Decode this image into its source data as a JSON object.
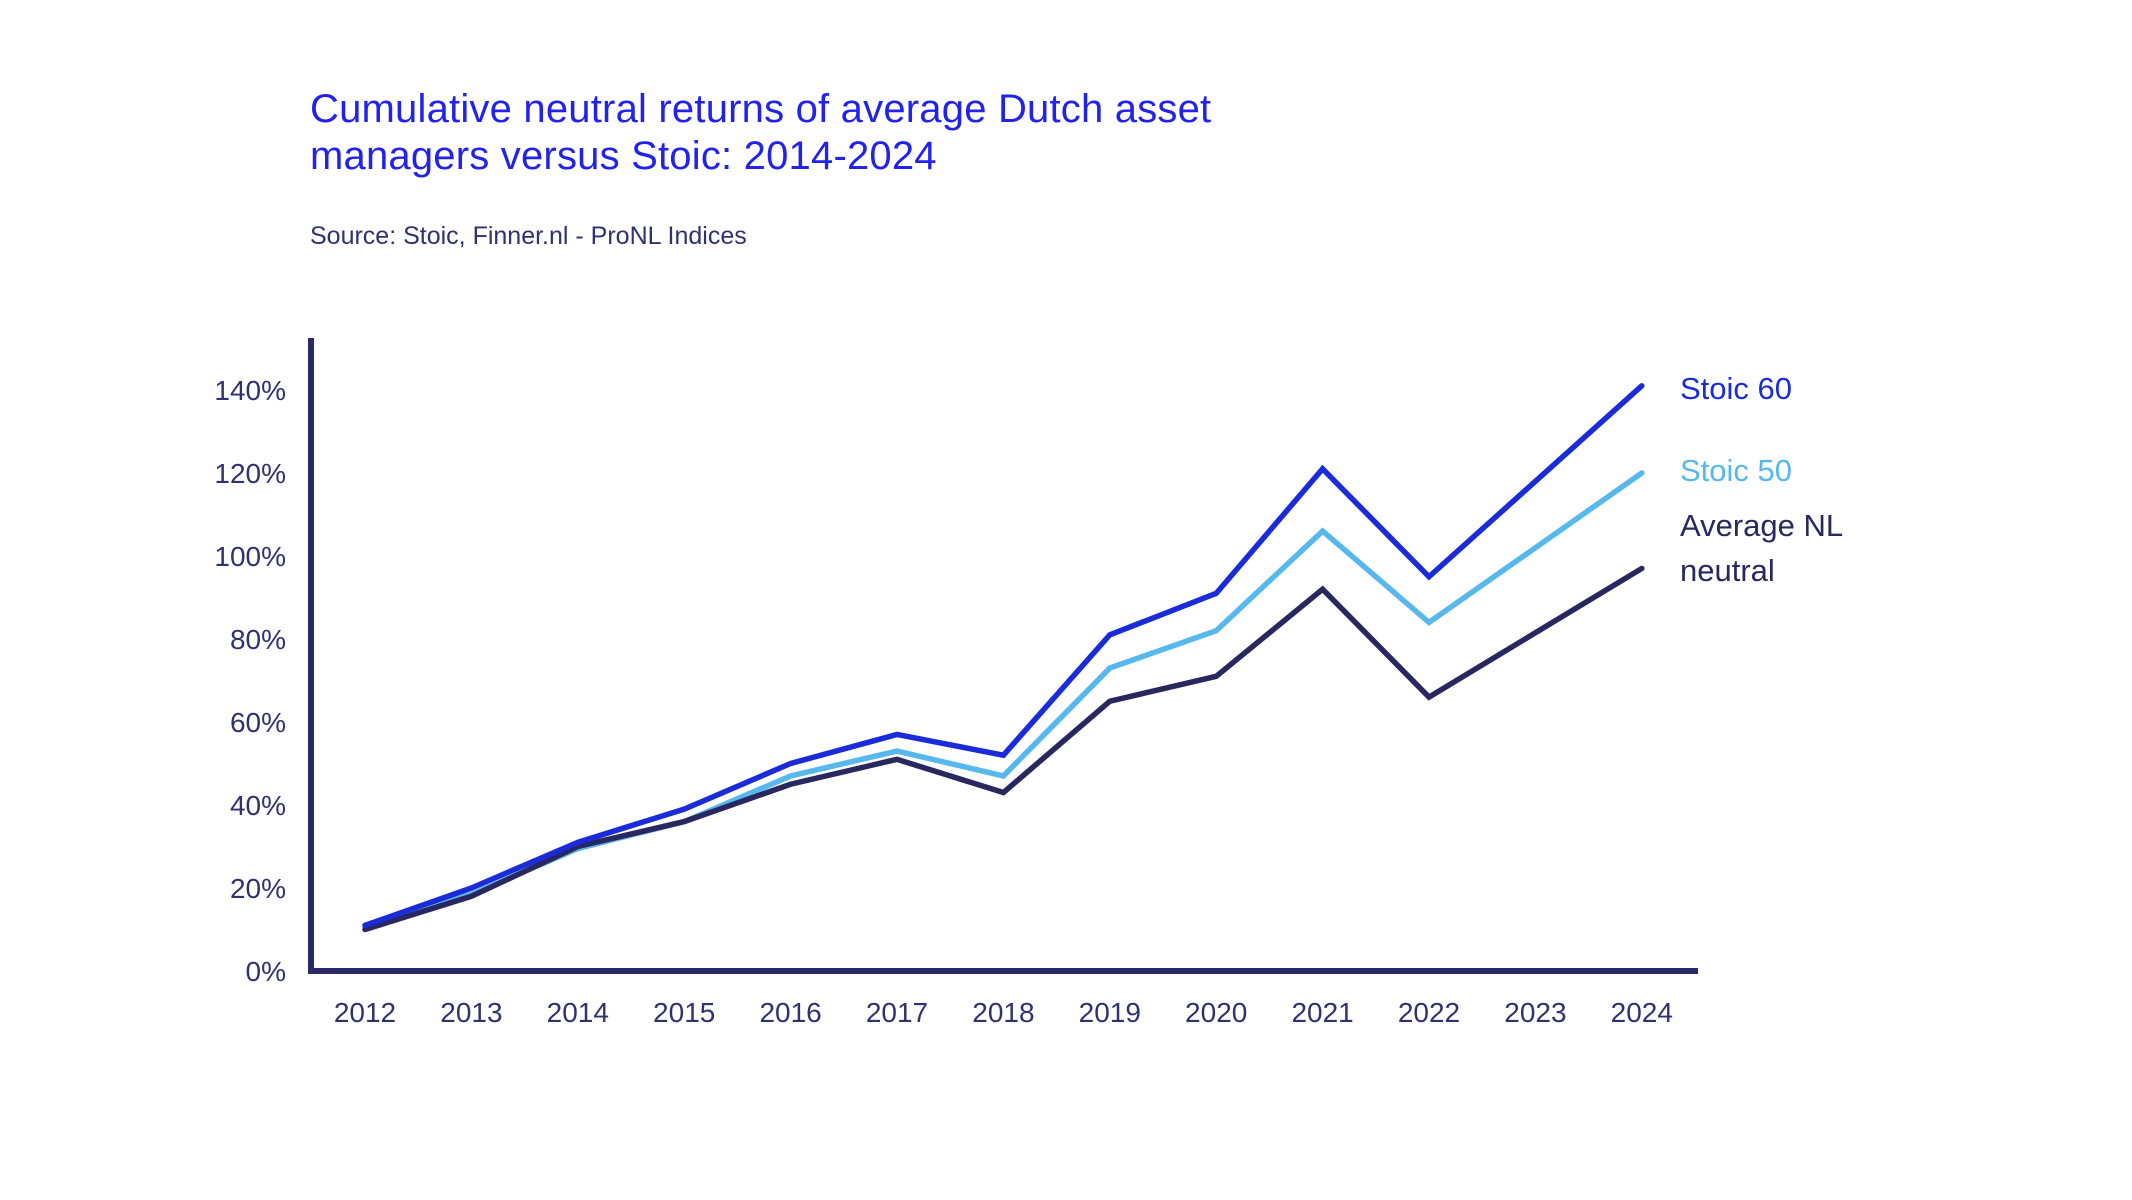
{
  "header": {
    "title_line1": "Cumulative neutral returns of average Dutch asset",
    "title_line2": "managers versus Stoic: 2014-2024",
    "source": "Source: Stoic, Finner.nl - ProNL Indices"
  },
  "colors": {
    "title_blue": "#2322ea",
    "stoic60_blue": "#1a2bd9",
    "stoic50_lightblue": "#56b8ec",
    "neutral_navy": "#28275f",
    "axis_navy": "#2b2a66",
    "tick_text": "#2f3170",
    "background": "#ffffff"
  },
  "chart_data": {
    "type": "line",
    "title": "Cumulative neutral returns of average Dutch asset managers versus Stoic: 2014-2024",
    "source": "Source: Stoic, Finner.nl - ProNL Indices",
    "x": [
      2012,
      2013,
      2014,
      2015,
      2016,
      2017,
      2018,
      2019,
      2020,
      2021,
      2022,
      2023,
      2024
    ],
    "x_tick_labels": [
      "2012",
      "2013",
      "2014",
      "2015",
      "2016",
      "2017",
      "2018",
      "2019",
      "2020",
      "2021",
      "2022",
      "2023",
      "2024"
    ],
    "y_ticks": [
      0,
      20,
      40,
      60,
      80,
      100,
      120,
      140
    ],
    "y_tick_labels": [
      "0%",
      "20%",
      "40%",
      "60%",
      "80%",
      "100%",
      "120%",
      "140%"
    ],
    "ylim": [
      0,
      152
    ],
    "unit": "percent cumulative return",
    "grid": false,
    "legend_position": "right of line ends",
    "series": [
      {
        "name": "Stoic 60",
        "color": "#1a2bd9",
        "values": [
          11,
          20,
          31,
          39,
          50,
          57,
          52,
          81,
          91,
          121,
          95,
          118,
          141
        ]
      },
      {
        "name": "Stoic 50",
        "color": "#56b8ec",
        "values": [
          10.5,
          18.5,
          29.5,
          36,
          47,
          53,
          47,
          73,
          82,
          106,
          84,
          102,
          120
        ]
      },
      {
        "name": "Average NL neutral",
        "color": "#28275f",
        "values": [
          10,
          18,
          30,
          36,
          45,
          51,
          43,
          65,
          71,
          92,
          66,
          81.5,
          97
        ]
      }
    ]
  }
}
